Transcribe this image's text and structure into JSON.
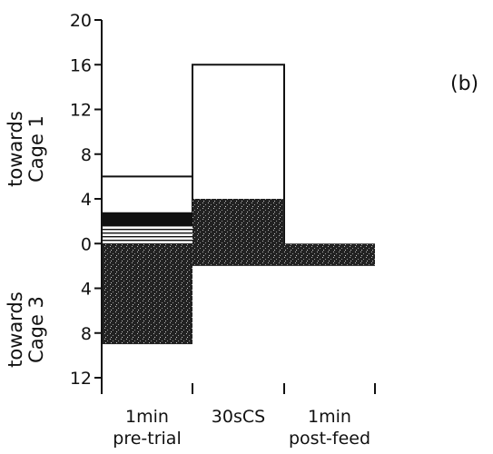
{
  "panel_label": "(b)",
  "chart_data": {
    "type": "bar",
    "title": "",
    "categories": [
      "1 min pre-trial",
      "30s CS",
      "1 min post-feed"
    ],
    "category_labels": [
      {
        "line1": "1min",
        "line2": "pre-trial"
      },
      {
        "line1": "30sCS",
        "line2": ""
      },
      {
        "line1": "1min",
        "line2": "post-feed"
      }
    ],
    "y_labels": {
      "upper": {
        "line1": "towards",
        "line2": "Cage 1"
      },
      "lower": {
        "line1": "towards",
        "line2": "Cage 3"
      }
    },
    "ylim": [
      -12,
      20
    ],
    "y_ticks": [
      -12,
      -8,
      -4,
      0,
      4,
      8,
      12,
      16,
      20
    ],
    "y_tick_labels": [
      "12",
      "8",
      "4",
      "0",
      "4",
      "8",
      "12",
      "16",
      "20"
    ],
    "series": [
      {
        "pattern": "open",
        "values": [
          6,
          16,
          0
        ]
      },
      {
        "pattern": "solid-dark",
        "values": [
          2.8,
          0,
          0
        ]
      },
      {
        "pattern": "horizontal-lines",
        "values": [
          1.6,
          0,
          0
        ]
      },
      {
        "pattern": "stippled",
        "values": [
          -9,
          4,
          0
        ]
      },
      {
        "pattern": "stippled-low",
        "values": [
          0,
          -2,
          -2
        ]
      }
    ],
    "grid": false,
    "legend": "none"
  }
}
